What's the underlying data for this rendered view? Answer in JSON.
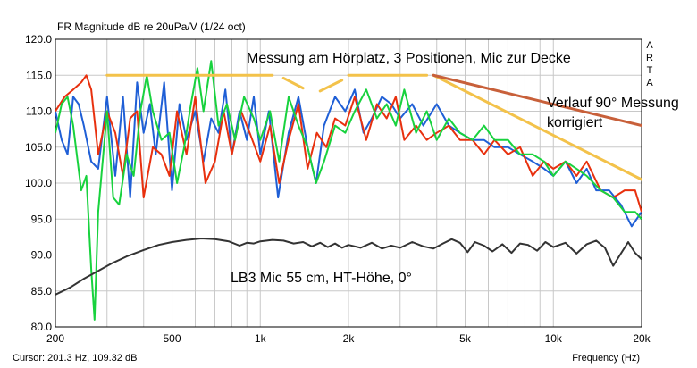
{
  "chart_data": {
    "type": "line",
    "title": "FR Magnitude dB re 20uPa/V (1/24 oct)",
    "xlabel": "Frequency (Hz)",
    "xscale": "log",
    "xlim": [
      200,
      20000
    ],
    "ylim": [
      80,
      120
    ],
    "grid": true,
    "x_ticks": [
      {
        "value": 200,
        "label": "200"
      },
      {
        "value": 500,
        "label": "500"
      },
      {
        "value": 1000,
        "label": "1k"
      },
      {
        "value": 2000,
        "label": "2k"
      },
      {
        "value": 5000,
        "label": "5k"
      },
      {
        "value": 10000,
        "label": "10k"
      },
      {
        "value": 20000,
        "label": "20k"
      }
    ],
    "y_ticks": [
      {
        "value": 80,
        "label": "80.0"
      },
      {
        "value": 85,
        "label": "85.0"
      },
      {
        "value": 90,
        "label": "90.0"
      },
      {
        "value": 95,
        "label": "95.0"
      },
      {
        "value": 100,
        "label": "100.0"
      },
      {
        "value": 105,
        "label": "105.0"
      },
      {
        "value": 110,
        "label": "110.0"
      },
      {
        "value": 115,
        "label": "115.0"
      },
      {
        "value": 120,
        "label": "120.0"
      }
    ],
    "side_label": [
      "A",
      "R",
      "T",
      "A"
    ],
    "cursor_readout": "Cursor: 201.3 Hz, 109.32 dB",
    "series": [
      {
        "color": "#1f5fd6",
        "points": [
          [
            200,
            110
          ],
          [
            210,
            106
          ],
          [
            220,
            104
          ],
          [
            230,
            112
          ],
          [
            240,
            111
          ],
          [
            250,
            108
          ],
          [
            265,
            103
          ],
          [
            280,
            102
          ],
          [
            300,
            112
          ],
          [
            320,
            101
          ],
          [
            340,
            112
          ],
          [
            360,
            98
          ],
          [
            380,
            114
          ],
          [
            400,
            107
          ],
          [
            420,
            111
          ],
          [
            440,
            104
          ],
          [
            470,
            114
          ],
          [
            500,
            99
          ],
          [
            530,
            111
          ],
          [
            560,
            106
          ],
          [
            600,
            110
          ],
          [
            640,
            103
          ],
          [
            680,
            109
          ],
          [
            720,
            107
          ],
          [
            760,
            113
          ],
          [
            800,
            104
          ],
          [
            850,
            110
          ],
          [
            900,
            106
          ],
          [
            950,
            112
          ],
          [
            1000,
            104
          ],
          [
            1070,
            110
          ],
          [
            1150,
            98
          ],
          [
            1250,
            107
          ],
          [
            1350,
            112
          ],
          [
            1450,
            105
          ],
          [
            1550,
            100
          ],
          [
            1650,
            108
          ],
          [
            1800,
            112
          ],
          [
            1950,
            110
          ],
          [
            2100,
            113
          ],
          [
            2250,
            107
          ],
          [
            2400,
            109
          ],
          [
            2600,
            112
          ],
          [
            2800,
            111
          ],
          [
            3000,
            109
          ],
          [
            3300,
            111
          ],
          [
            3600,
            108
          ],
          [
            4000,
            111
          ],
          [
            4400,
            108
          ],
          [
            4800,
            107
          ],
          [
            5300,
            106
          ],
          [
            5800,
            106
          ],
          [
            6300,
            105
          ],
          [
            7000,
            105
          ],
          [
            7700,
            104
          ],
          [
            8500,
            103
          ],
          [
            9300,
            102
          ],
          [
            10000,
            101
          ],
          [
            11000,
            103
          ],
          [
            12000,
            100
          ],
          [
            13000,
            102
          ],
          [
            14000,
            99
          ],
          [
            15500,
            99
          ],
          [
            17000,
            97
          ],
          [
            18500,
            94
          ],
          [
            20000,
            96
          ]
        ]
      },
      {
        "color": "#e8300e",
        "points": [
          [
            200,
            110
          ],
          [
            215,
            112
          ],
          [
            230,
            113
          ],
          [
            245,
            114
          ],
          [
            255,
            115
          ],
          [
            265,
            113
          ],
          [
            280,
            104
          ],
          [
            300,
            110
          ],
          [
            320,
            107
          ],
          [
            340,
            101
          ],
          [
            360,
            109
          ],
          [
            380,
            110
          ],
          [
            400,
            98
          ],
          [
            430,
            105
          ],
          [
            460,
            104
          ],
          [
            490,
            101
          ],
          [
            520,
            110
          ],
          [
            560,
            104
          ],
          [
            600,
            112
          ],
          [
            650,
            100
          ],
          [
            700,
            103
          ],
          [
            750,
            110
          ],
          [
            800,
            104
          ],
          [
            860,
            110
          ],
          [
            920,
            107
          ],
          [
            1000,
            103
          ],
          [
            1080,
            108
          ],
          [
            1160,
            100
          ],
          [
            1250,
            106
          ],
          [
            1350,
            111
          ],
          [
            1450,
            102
          ],
          [
            1560,
            107
          ],
          [
            1680,
            105
          ],
          [
            1800,
            109
          ],
          [
            1950,
            108
          ],
          [
            2100,
            112
          ],
          [
            2300,
            106
          ],
          [
            2500,
            111
          ],
          [
            2700,
            109
          ],
          [
            2900,
            112
          ],
          [
            3100,
            106
          ],
          [
            3400,
            108
          ],
          [
            3700,
            106
          ],
          [
            4000,
            107
          ],
          [
            4400,
            108
          ],
          [
            4800,
            106
          ],
          [
            5300,
            106
          ],
          [
            5800,
            104
          ],
          [
            6300,
            106
          ],
          [
            7000,
            104
          ],
          [
            7700,
            105
          ],
          [
            8500,
            101
          ],
          [
            9300,
            103
          ],
          [
            10000,
            102
          ],
          [
            11000,
            103
          ],
          [
            12000,
            101
          ],
          [
            13000,
            103
          ],
          [
            14500,
            99
          ],
          [
            16000,
            98
          ],
          [
            17500,
            99
          ],
          [
            19000,
            99
          ],
          [
            20000,
            96
          ]
        ]
      },
      {
        "color": "#18d23e",
        "points": [
          [
            200,
            107
          ],
          [
            210,
            111
          ],
          [
            220,
            112
          ],
          [
            230,
            108
          ],
          [
            245,
            99
          ],
          [
            255,
            101
          ],
          [
            265,
            88
          ],
          [
            272,
            81
          ],
          [
            280,
            96
          ],
          [
            300,
            110
          ],
          [
            315,
            98
          ],
          [
            330,
            97
          ],
          [
            350,
            104
          ],
          [
            370,
            101
          ],
          [
            390,
            110
          ],
          [
            410,
            115
          ],
          [
            430,
            110
          ],
          [
            460,
            106
          ],
          [
            490,
            107
          ],
          [
            520,
            100
          ],
          [
            550,
            105
          ],
          [
            580,
            111
          ],
          [
            610,
            116
          ],
          [
            640,
            110
          ],
          [
            680,
            117
          ],
          [
            720,
            108
          ],
          [
            770,
            111
          ],
          [
            820,
            106
          ],
          [
            880,
            112
          ],
          [
            950,
            109
          ],
          [
            1000,
            106
          ],
          [
            1080,
            110
          ],
          [
            1160,
            103
          ],
          [
            1250,
            112
          ],
          [
            1350,
            108
          ],
          [
            1450,
            105
          ],
          [
            1550,
            100
          ],
          [
            1650,
            103
          ],
          [
            1800,
            108
          ],
          [
            1950,
            107
          ],
          [
            2100,
            110
          ],
          [
            2300,
            113
          ],
          [
            2500,
            109
          ],
          [
            2700,
            111
          ],
          [
            2900,
            108
          ],
          [
            3100,
            113
          ],
          [
            3400,
            107
          ],
          [
            3700,
            110
          ],
          [
            4000,
            106
          ],
          [
            4400,
            109
          ],
          [
            4800,
            107
          ],
          [
            5300,
            106
          ],
          [
            5800,
            108
          ],
          [
            6300,
            106
          ],
          [
            7000,
            106
          ],
          [
            7700,
            104
          ],
          [
            8500,
            104
          ],
          [
            9300,
            103
          ],
          [
            10000,
            101
          ],
          [
            11000,
            103
          ],
          [
            12000,
            102
          ],
          [
            13000,
            101
          ],
          [
            14500,
            99
          ],
          [
            16000,
            98
          ],
          [
            17500,
            96
          ],
          [
            19000,
            96
          ],
          [
            20000,
            95
          ]
        ]
      },
      {
        "color": "#333333",
        "points": [
          [
            200,
            84.5
          ],
          [
            225,
            85.5
          ],
          [
            250,
            86.7
          ],
          [
            280,
            87.8
          ],
          [
            310,
            88.8
          ],
          [
            350,
            89.8
          ],
          [
            400,
            90.7
          ],
          [
            450,
            91.4
          ],
          [
            500,
            91.8
          ],
          [
            560,
            92.1
          ],
          [
            630,
            92.3
          ],
          [
            700,
            92.2
          ],
          [
            780,
            91.9
          ],
          [
            850,
            91.3
          ],
          [
            900,
            91.7
          ],
          [
            950,
            91.6
          ],
          [
            1000,
            91.9
          ],
          [
            1100,
            92.1
          ],
          [
            1200,
            92.0
          ],
          [
            1300,
            91.6
          ],
          [
            1400,
            91.8
          ],
          [
            1500,
            91.2
          ],
          [
            1600,
            91.7
          ],
          [
            1700,
            91.1
          ],
          [
            1800,
            91.6
          ],
          [
            1900,
            91.0
          ],
          [
            2000,
            91.4
          ],
          [
            2200,
            91.0
          ],
          [
            2400,
            91.7
          ],
          [
            2600,
            90.9
          ],
          [
            2800,
            91.3
          ],
          [
            3000,
            91.0
          ],
          [
            3300,
            91.8
          ],
          [
            3600,
            91.2
          ],
          [
            3900,
            90.9
          ],
          [
            4200,
            91.6
          ],
          [
            4500,
            92.2
          ],
          [
            4800,
            91.7
          ],
          [
            5100,
            90.4
          ],
          [
            5400,
            91.8
          ],
          [
            5800,
            91.3
          ],
          [
            6200,
            90.5
          ],
          [
            6700,
            91.5
          ],
          [
            7200,
            90.3
          ],
          [
            7700,
            91.6
          ],
          [
            8200,
            91.4
          ],
          [
            8800,
            90.6
          ],
          [
            9400,
            91.8
          ],
          [
            10000,
            91.1
          ],
          [
            11000,
            91.7
          ],
          [
            12000,
            90.2
          ],
          [
            13000,
            91.5
          ],
          [
            14000,
            92.0
          ],
          [
            15000,
            91.0
          ],
          [
            16000,
            88.5
          ],
          [
            17000,
            90.2
          ],
          [
            18000,
            91.8
          ],
          [
            19000,
            90.3
          ],
          [
            20000,
            89.4
          ]
        ]
      }
    ],
    "annotations": [
      {
        "text": "Messung am Hörplatz, 3 Positionen, Mic zur Decke"
      },
      {
        "text": "Verlauf 90° Messung"
      },
      {
        "text": "korrigiert"
      },
      {
        "text": "LB3 Mic 55 cm, HT-Höhe, 0°"
      }
    ],
    "overlay_lines": [
      {
        "color": "#f3c24a",
        "points": [
          [
            300,
            115
          ],
          [
            1100,
            115
          ]
        ]
      },
      {
        "color": "#f3c24a",
        "points": [
          [
            1200,
            114.6
          ],
          [
            1400,
            113.2
          ]
        ]
      },
      {
        "color": "#f3c24a",
        "points": [
          [
            1600,
            112.8
          ],
          [
            1900,
            114.3
          ]
        ]
      },
      {
        "color": "#f3c24a",
        "points": [
          [
            2000,
            115
          ],
          [
            3700,
            115
          ]
        ]
      },
      {
        "color": "#f3c24a",
        "points": [
          [
            3900,
            115
          ],
          [
            20000,
            100.5
          ]
        ]
      },
      {
        "color": "#c8603a",
        "points": [
          [
            3900,
            115
          ],
          [
            20000,
            108
          ]
        ]
      }
    ]
  }
}
